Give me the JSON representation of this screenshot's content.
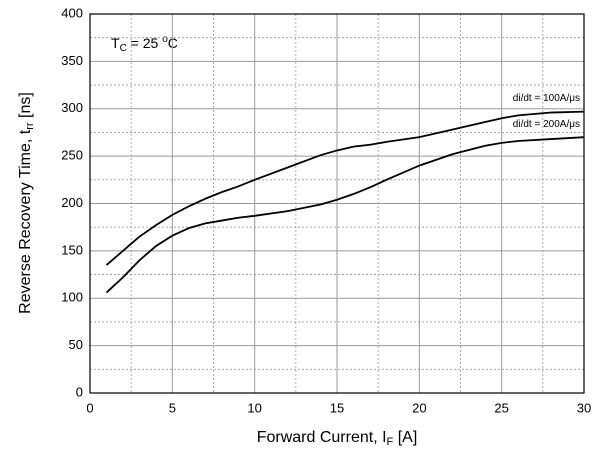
{
  "chart_data": {
    "type": "line",
    "annotation": {
      "text": "T",
      "sub": "C",
      "mid": " = 25 ",
      "sup": "o",
      "after": "C"
    },
    "xlabel": {
      "text": "Forward Current, I",
      "sub": "F",
      "after": " [A]"
    },
    "ylabel": {
      "text": "Reverse Recovery Time, t",
      "sub": "rr",
      "after": " [ns]"
    },
    "x": [
      1,
      2,
      3,
      4,
      5,
      6,
      7,
      8,
      9,
      10,
      12,
      14,
      15,
      16,
      17,
      18,
      20,
      22,
      24,
      25,
      26,
      28,
      30
    ],
    "series": [
      {
        "name": "di/dt = 100A/μs",
        "color": "#000000",
        "values": [
          135,
          150,
          165,
          177,
          188,
          197,
          205,
          212,
          218,
          225,
          238,
          251,
          256,
          260,
          262,
          265,
          270,
          278,
          286,
          290,
          293,
          296,
          297
        ]
      },
      {
        "name": "di/dt = 200A/μs",
        "color": "#000000",
        "values": [
          106,
          122,
          140,
          155,
          166,
          174,
          179,
          182,
          185,
          187,
          192,
          199,
          204,
          210,
          217,
          225,
          240,
          252,
          261,
          264,
          266,
          268,
          270
        ]
      }
    ],
    "xlim": [
      0,
      30
    ],
    "xticks": [
      0,
      5,
      10,
      15,
      20,
      25,
      30
    ],
    "ylim": [
      0,
      400
    ],
    "yticks": [
      0,
      50,
      100,
      150,
      200,
      250,
      300,
      350,
      400
    ],
    "grid": true
  }
}
